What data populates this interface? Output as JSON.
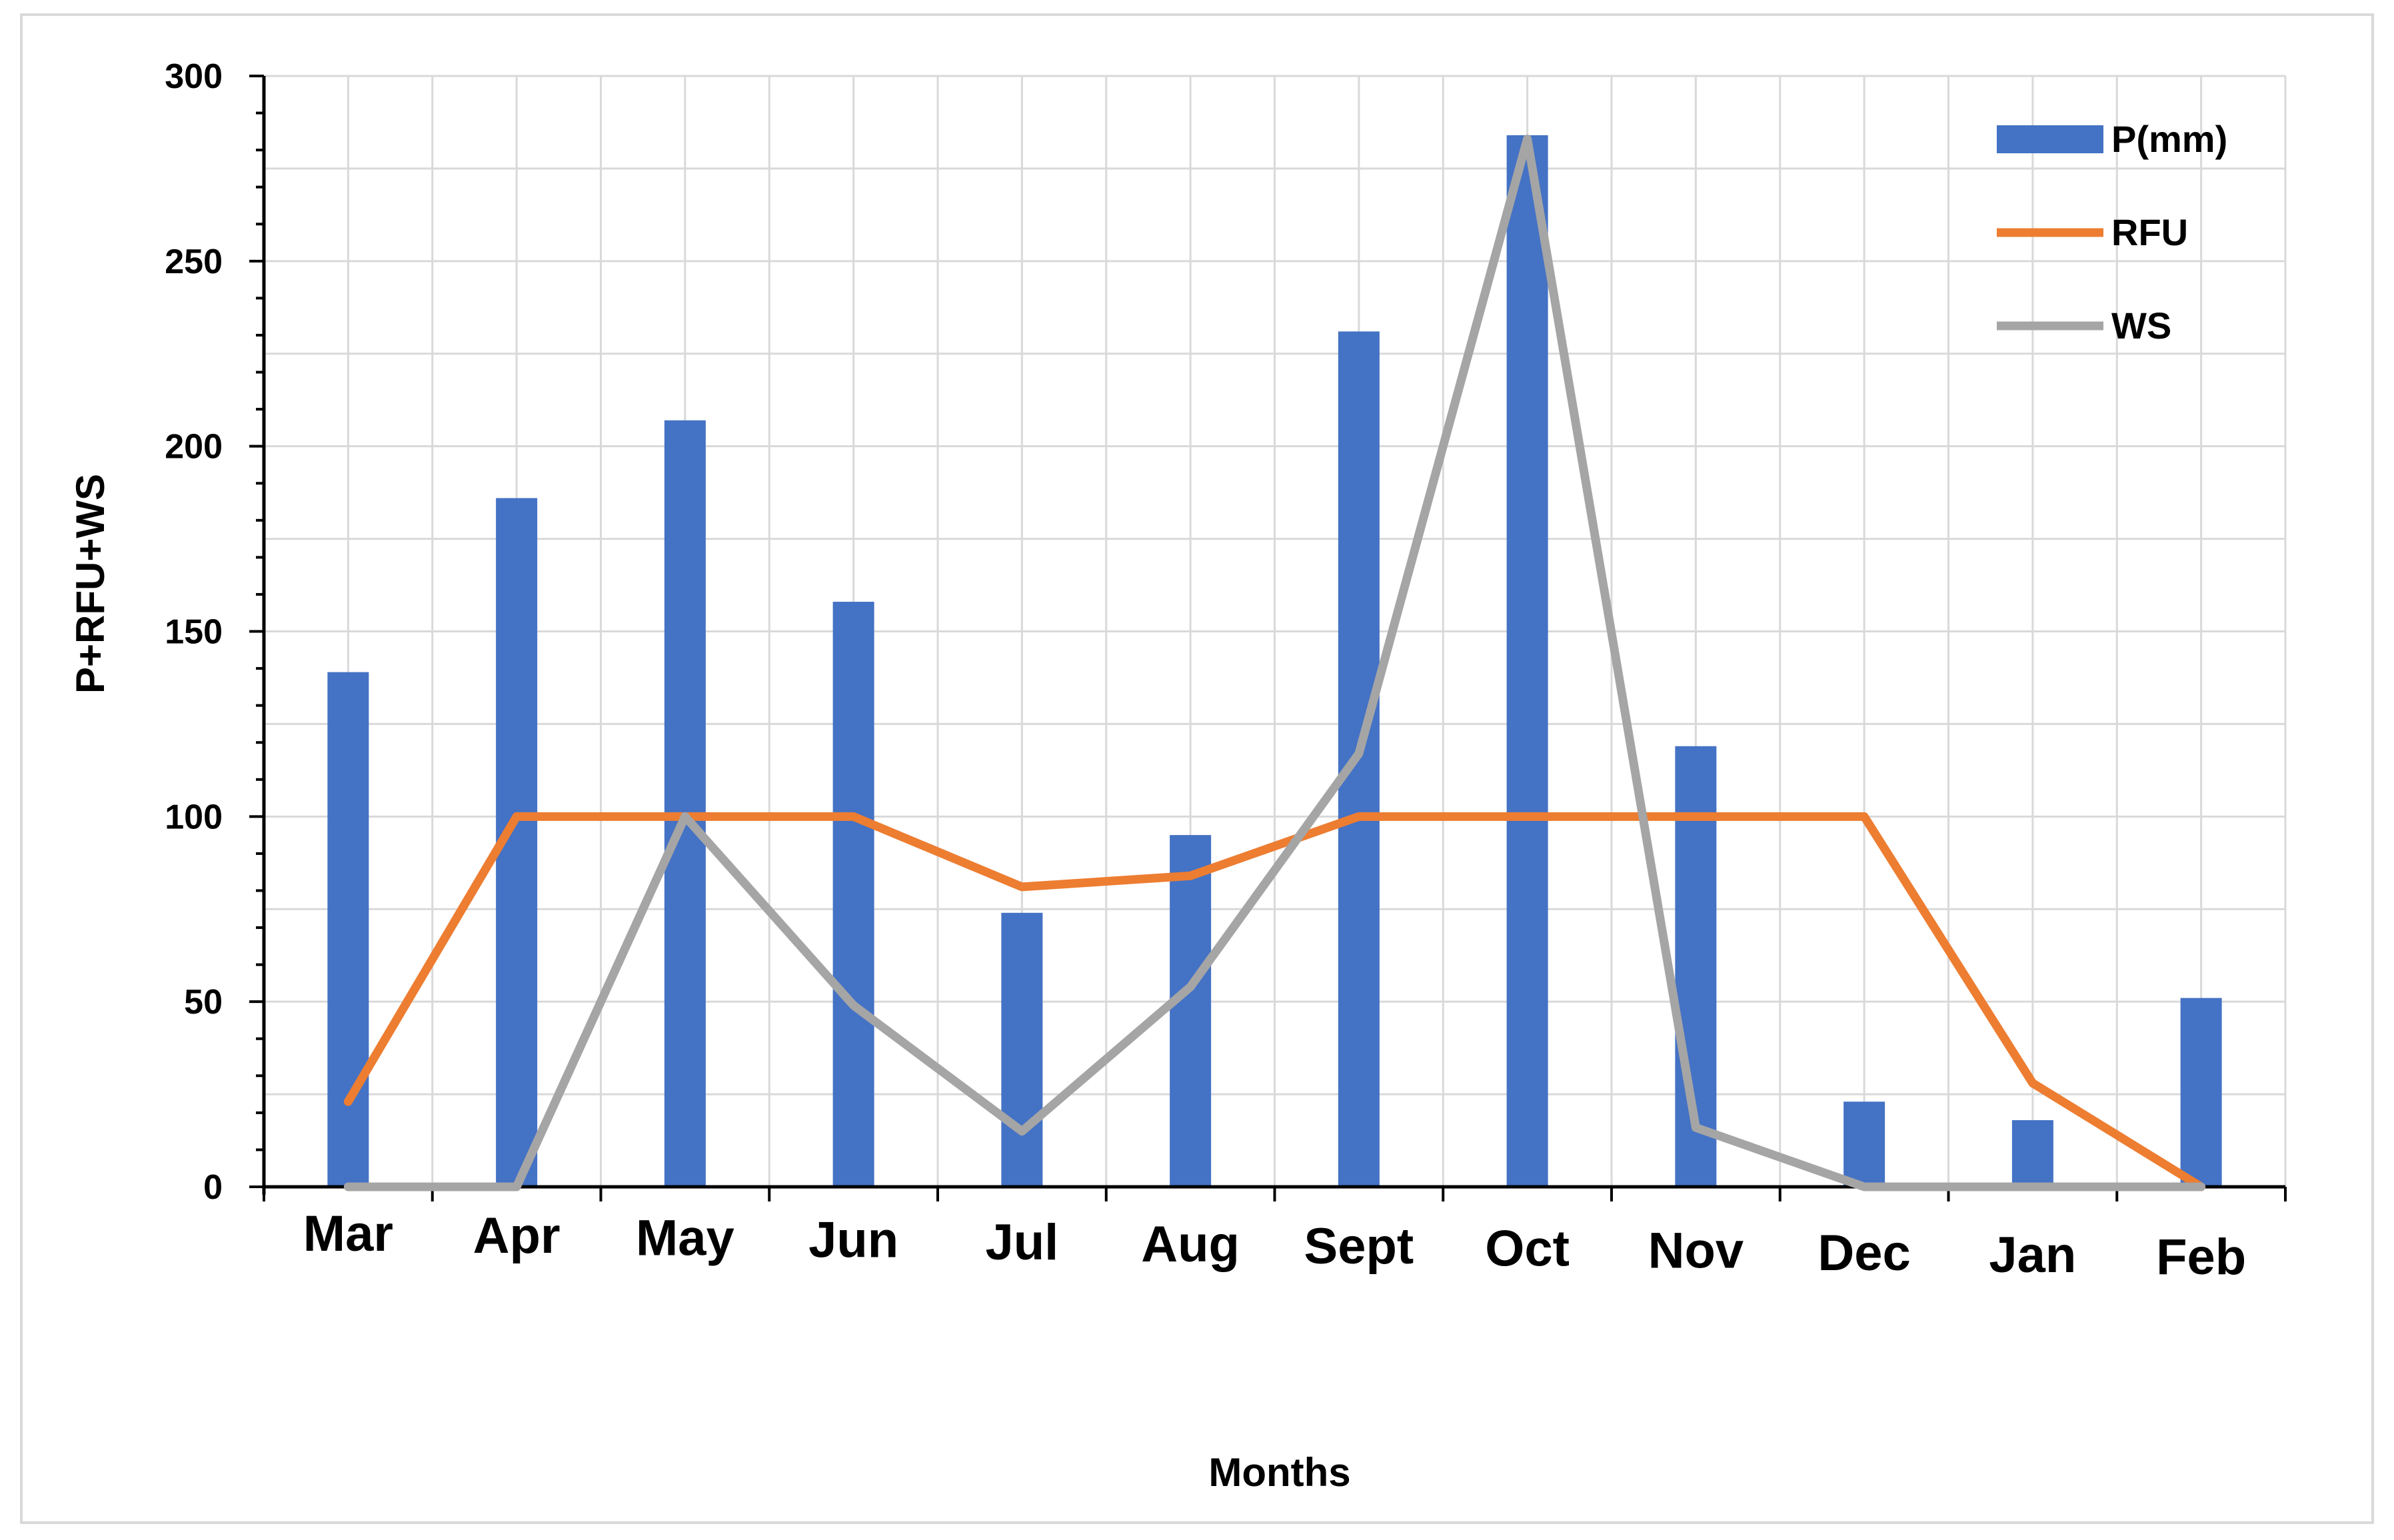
{
  "chart_data": {
    "type": "bar",
    "title": "",
    "xlabel": "Months",
    "ylabel": "P+RFU+WS",
    "ylim": [
      0,
      300
    ],
    "yticks": [
      "0",
      "50",
      "100",
      "150",
      "200",
      "250",
      "300"
    ],
    "categories": [
      "Mar",
      "Apr",
      "May",
      "Jun",
      "Jul",
      "Aug",
      "Sept",
      "Oct",
      "Nov",
      "Dec",
      "Jan",
      "Feb"
    ],
    "grid": true,
    "legend_position": "top-right",
    "series": [
      {
        "name": "P(mm)",
        "kind": "bar",
        "color": "#4472c4",
        "values": [
          139,
          186,
          207,
          158,
          74,
          95,
          231,
          284,
          119,
          23,
          18,
          51
        ]
      },
      {
        "name": "RFU",
        "kind": "line",
        "color": "#ed7d31",
        "values": [
          23,
          100,
          100,
          100,
          81,
          84,
          100,
          100,
          100,
          100,
          28,
          0
        ]
      },
      {
        "name": "WS",
        "kind": "line",
        "color": "#a5a5a5",
        "values": [
          0,
          0,
          100,
          49,
          15,
          54,
          117,
          283,
          16,
          0,
          0,
          0
        ]
      }
    ]
  }
}
